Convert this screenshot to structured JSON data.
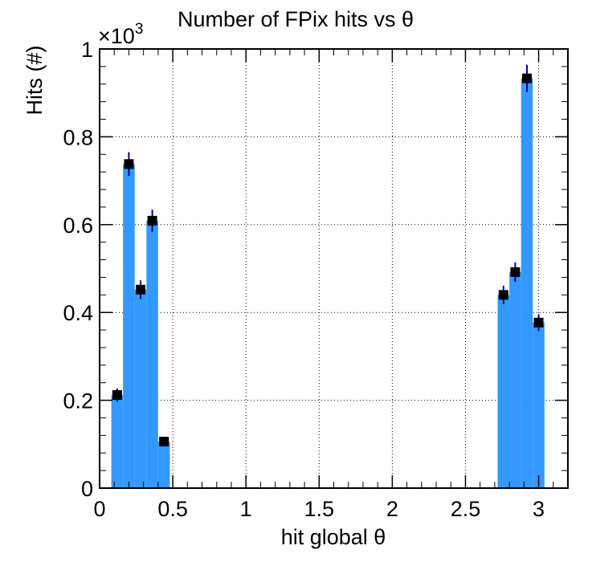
{
  "chart_data": {
    "type": "bar",
    "title": "Number of FPix hits vs θ",
    "xlabel": "hit global θ",
    "ylabel": "Hits (#)",
    "y_exponent_label": "×10",
    "y_exponent_power": "3",
    "xlim": [
      0,
      3.2
    ],
    "ylim": [
      0,
      1.0
    ],
    "grid": true,
    "bin_width": 0.08,
    "x_ticks": [
      "0",
      "0.5",
      "1",
      "1.5",
      "2",
      "2.5",
      "3"
    ],
    "x_tick_values": [
      0,
      0.5,
      1,
      1.5,
      2,
      2.5,
      3
    ],
    "y_ticks": [
      "0",
      "0.2",
      "0.4",
      "0.6",
      "0.8",
      "1"
    ],
    "y_tick_values": [
      0,
      0.2,
      0.4,
      0.6,
      0.8,
      1.0
    ],
    "bins": [
      {
        "x": 0.12,
        "y": 0.212,
        "err": 0.015
      },
      {
        "x": 0.2,
        "y": 0.738,
        "err": 0.027
      },
      {
        "x": 0.28,
        "y": 0.452,
        "err": 0.021
      },
      {
        "x": 0.36,
        "y": 0.609,
        "err": 0.025
      },
      {
        "x": 0.44,
        "y": 0.106,
        "err": 0.01
      },
      {
        "x": 2.76,
        "y": 0.44,
        "err": 0.021
      },
      {
        "x": 2.84,
        "y": 0.492,
        "err": 0.022
      },
      {
        "x": 2.92,
        "y": 0.933,
        "err": 0.031
      },
      {
        "x": 3.0,
        "y": 0.377,
        "err": 0.019
      }
    ],
    "colors": {
      "fill": "#3399ff",
      "marker": "#000000",
      "error_bar": "#000099",
      "grid": "#000000"
    }
  }
}
